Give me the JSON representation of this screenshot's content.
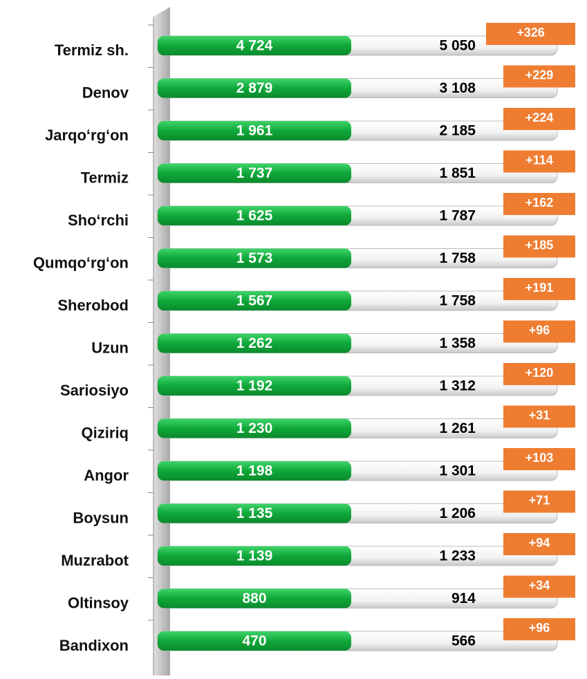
{
  "rows": [
    {
      "name": "Termiz sh.",
      "before": "4 724",
      "after": "5 050",
      "change": "+326"
    },
    {
      "name": "Denov",
      "before": "2 879",
      "after": "3 108",
      "change": "+229"
    },
    {
      "name": "Jarqo‘rg‘on",
      "before": "1 961",
      "after": "2 185",
      "change": "+224"
    },
    {
      "name": "Termiz",
      "before": "1 737",
      "after": "1 851",
      "change": "+114"
    },
    {
      "name": "Sho‘rchi",
      "before": "1 625",
      "after": "1 787",
      "change": "+162"
    },
    {
      "name": "Qumqo‘rg‘on",
      "before": "1 573",
      "after": "1 758",
      "change": "+185"
    },
    {
      "name": "Sherobod",
      "before": "1 567",
      "after": "1 758",
      "change": "+191"
    },
    {
      "name": "Uzun",
      "before": "1 262",
      "after": "1 358",
      "change": "+96"
    },
    {
      "name": "Sariosiyo",
      "before": "1 192",
      "after": "1 312",
      "change": "+120"
    },
    {
      "name": "Qiziriq",
      "before": "1 230",
      "after": "1 261",
      "change": "+31"
    },
    {
      "name": "Angor",
      "before": "1 198",
      "after": "1 301",
      "change": "+103"
    },
    {
      "name": "Boysun",
      "before": "1 135",
      "after": "1 206",
      "change": "+71"
    },
    {
      "name": "Muzrabot",
      "before": "1 139",
      "after": "1 233",
      "change": "+94"
    },
    {
      "name": "Oltinsoy",
      "before": "880",
      "after": "914",
      "change": "+34"
    },
    {
      "name": "Bandixon",
      "before": "470",
      "after": "566",
      "change": "+96"
    }
  ]
}
